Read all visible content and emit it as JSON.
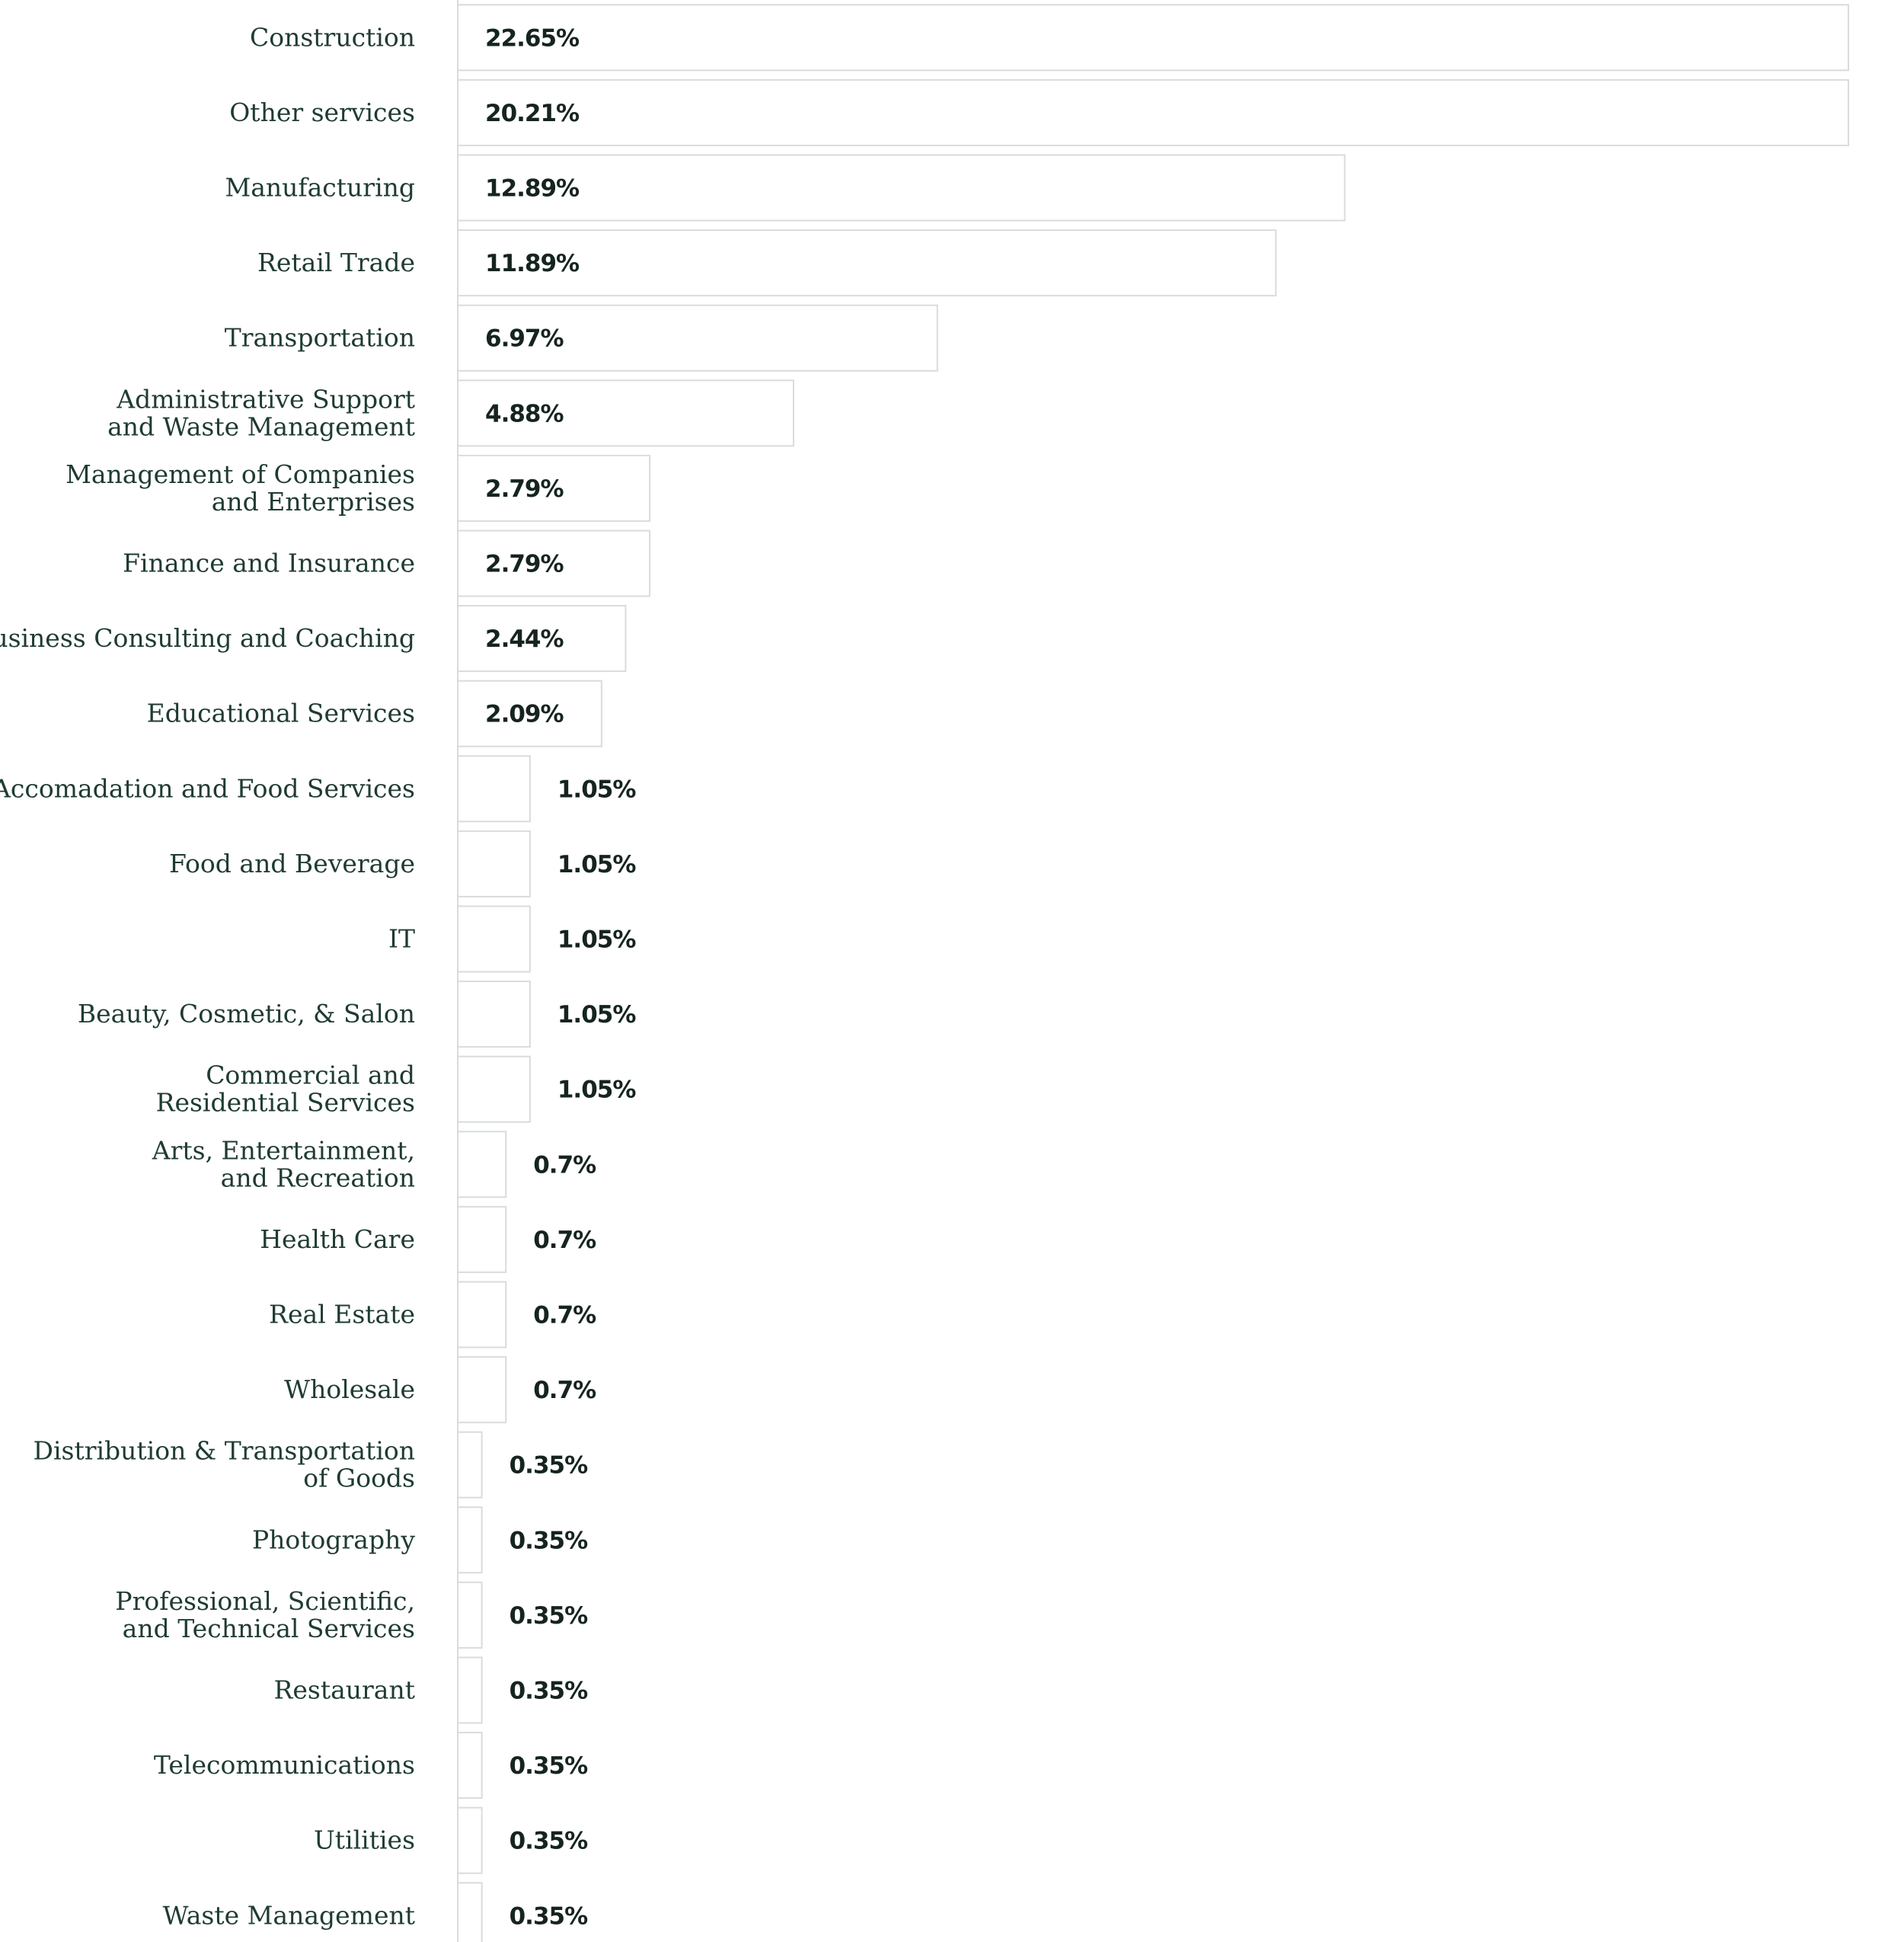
{
  "chart_data": {
    "type": "bar",
    "orientation": "horizontal",
    "categories": [
      "Construction",
      "Other services",
      "Manufacturing",
      "Retail Trade",
      "Transportation",
      "Administrative Support and Waste Management",
      "Management of Companies and Enterprises",
      "Finance and Insurance",
      "Business Consulting and Coaching",
      "Educational Services",
      "Accomadation and Food Services",
      "Food and Beverage",
      "IT",
      "Beauty, Cosmetic, & Salon",
      "Commercial and Residential Services",
      "Arts, Entertainment, and Recreation",
      "Health Care",
      "Real Estate",
      "Wholesale",
      "Distribution & Transportation of Goods",
      "Photography",
      "Professional, Scientific, and Technical Services",
      "Restaurant",
      "Telecommunications",
      "Utilities",
      "Waste Management"
    ],
    "values": [
      22.65,
      20.21,
      12.89,
      11.89,
      6.97,
      4.88,
      2.79,
      2.79,
      2.44,
      2.09,
      1.05,
      1.05,
      1.05,
      1.05,
      1.05,
      0.7,
      0.7,
      0.7,
      0.7,
      0.35,
      0.35,
      0.35,
      0.35,
      0.35,
      0.35,
      0.35
    ],
    "value_labels": [
      "22.65%",
      "20.21%",
      "12.89%",
      "11.89%",
      "6.97%",
      "4.88%",
      "2.79%",
      "2.79%",
      "2.44%",
      "2.09%",
      "1.05%",
      "1.05%",
      "1.05%",
      "1.05%",
      "1.05%",
      "0.7%",
      "0.7%",
      "0.7%",
      "0.7%",
      "0.35%",
      "0.35%",
      "0.35%",
      "0.35%",
      "0.35%",
      "0.35%",
      "0.35%"
    ],
    "xlim": [
      0,
      20.21
    ],
    "grid": false,
    "legend": "none",
    "colors": {
      "bar_fill": "#ffffff",
      "bar_stroke": "#d9dcdb",
      "label_text": "#1f3b32",
      "value_text": "#16241f"
    }
  }
}
